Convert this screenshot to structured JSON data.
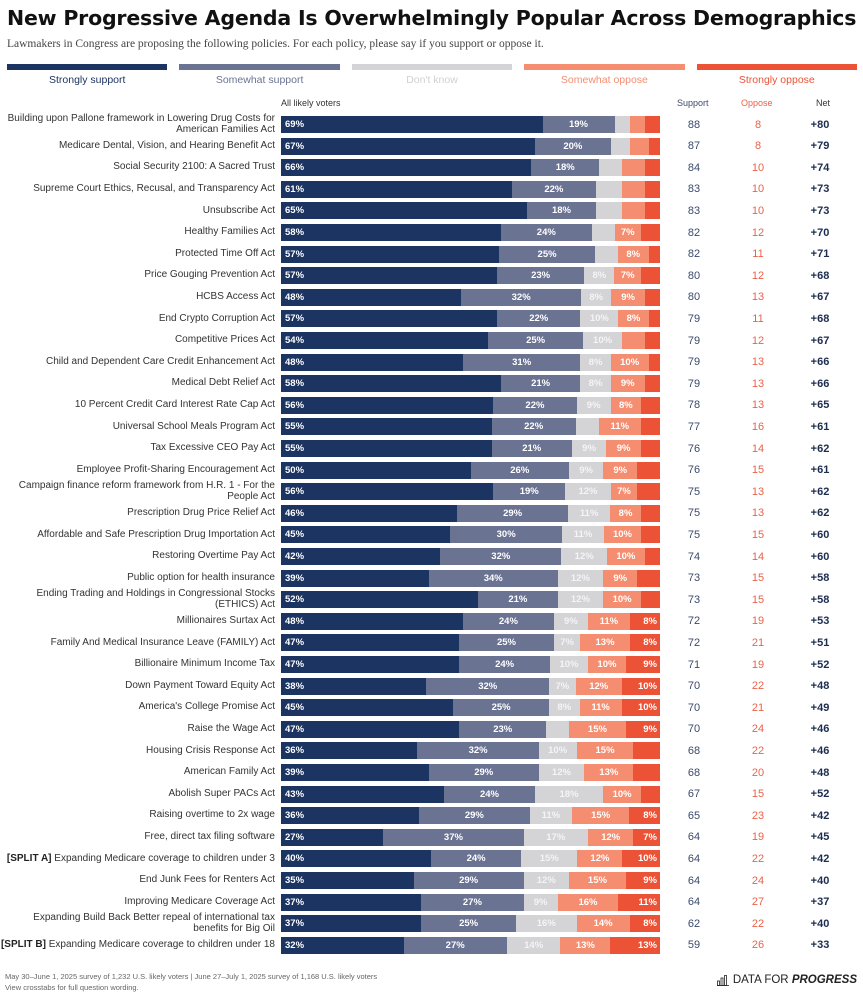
{
  "header": {
    "title": "New Progressive Agenda Is Overwhelmingly Popular Across Demographics",
    "subtitle": "Lawmakers in Congress are proposing the following policies. For each policy, please say if you support or oppose it."
  },
  "colors": {
    "strongly_support": "#1c3461",
    "somewhat_support": "#6b7393",
    "dont_know": "#d4d4d6",
    "somewhat_oppose": "#f58d70",
    "strongly_oppose": "#ec5236"
  },
  "legend": [
    {
      "label": "Strongly support",
      "color": "#1c3461",
      "text_color": "#1c3461"
    },
    {
      "label": "Somewhat support",
      "color": "#6b7393",
      "text_color": "#6b7393"
    },
    {
      "label": "Don't know",
      "color": "#d4d4d6",
      "text_color": "#d0d0d2"
    },
    {
      "label": "Somewhat oppose",
      "color": "#f58d70",
      "text_color": "#f58d70"
    },
    {
      "label": "Strongly oppose",
      "color": "#ec5236",
      "text_color": "#ec5236"
    }
  ],
  "columns": {
    "group": "All likely voters",
    "support": "Support",
    "oppose": "Oppose",
    "net": "Net"
  },
  "chart_data": {
    "type": "bar",
    "orientation": "horizontal-stacked-100",
    "title": "New Progressive Agenda Is Overwhelmingly Popular Across Demographics",
    "subtitle": "Lawmakers in Congress are proposing the following policies. For each policy, please say if you support or oppose it.",
    "group": "All likely voters",
    "series_names": [
      "Strongly support",
      "Somewhat support",
      "Don't know",
      "Somewhat oppose",
      "Strongly oppose"
    ],
    "legend_position": "top",
    "xlim": [
      0,
      100
    ],
    "rows": [
      {
        "label": "Building upon Pallone framework in Lowering Drug Costs for American Families Act",
        "values": [
          69,
          19,
          4,
          4,
          4
        ],
        "shown": [
          true,
          true,
          false,
          false,
          false
        ],
        "support": "88",
        "oppose": "8",
        "net": "+80"
      },
      {
        "label": "Medicare Dental, Vision, and Hearing Benefit Act",
        "values": [
          67,
          20,
          5,
          5,
          3
        ],
        "shown": [
          true,
          true,
          false,
          false,
          false
        ],
        "support": "87",
        "oppose": "8",
        "net": "+79"
      },
      {
        "label": "Social Security 2100: A Sacred Trust",
        "values": [
          66,
          18,
          6,
          6,
          4
        ],
        "shown": [
          true,
          true,
          false,
          false,
          false
        ],
        "support": "84",
        "oppose": "10",
        "net": "+74"
      },
      {
        "label": "Supreme Court Ethics, Recusal, and Transparency Act",
        "values": [
          61,
          22,
          7,
          6,
          4
        ],
        "shown": [
          true,
          true,
          false,
          false,
          false
        ],
        "support": "83",
        "oppose": "10",
        "net": "+73"
      },
      {
        "label": "Unsubscribe Act",
        "values": [
          65,
          18,
          7,
          6,
          4
        ],
        "shown": [
          true,
          true,
          false,
          false,
          false
        ],
        "support": "83",
        "oppose": "10",
        "net": "+73"
      },
      {
        "label": "Healthy Families Act",
        "values": [
          58,
          24,
          6,
          7,
          5
        ],
        "shown": [
          true,
          true,
          false,
          true,
          false
        ],
        "support": "82",
        "oppose": "12",
        "net": "+70"
      },
      {
        "label": "Protected Time Off Act",
        "values": [
          57,
          25,
          6,
          8,
          3
        ],
        "shown": [
          true,
          true,
          false,
          true,
          false
        ],
        "support": "82",
        "oppose": "11",
        "net": "+71"
      },
      {
        "label": "Price Gouging Prevention Act",
        "values": [
          57,
          23,
          8,
          7,
          5
        ],
        "shown": [
          true,
          true,
          true,
          true,
          false
        ],
        "support": "80",
        "oppose": "12",
        "net": "+68"
      },
      {
        "label": "HCBS Access Act",
        "values": [
          48,
          32,
          8,
          9,
          4
        ],
        "shown": [
          true,
          true,
          true,
          true,
          false
        ],
        "support": "80",
        "oppose": "13",
        "net": "+67"
      },
      {
        "label": "End Crypto Corruption Act",
        "values": [
          57,
          22,
          10,
          8,
          3
        ],
        "shown": [
          true,
          true,
          true,
          true,
          false
        ],
        "support": "79",
        "oppose": "11",
        "net": "+68"
      },
      {
        "label": "Competitive Prices Act",
        "values": [
          54,
          25,
          10,
          6,
          4
        ],
        "shown": [
          true,
          true,
          true,
          false,
          false
        ],
        "support": "79",
        "oppose": "12",
        "net": "+67"
      },
      {
        "label": "Child and Dependent Care Credit Enhancement Act",
        "values": [
          48,
          31,
          8,
          10,
          3
        ],
        "shown": [
          true,
          true,
          true,
          true,
          false
        ],
        "support": "79",
        "oppose": "13",
        "net": "+66"
      },
      {
        "label": "Medical Debt Relief Act",
        "values": [
          58,
          21,
          8,
          9,
          4
        ],
        "shown": [
          true,
          true,
          true,
          true,
          false
        ],
        "support": "79",
        "oppose": "13",
        "net": "+66"
      },
      {
        "label": "10 Percent Credit Card Interest Rate Cap Act",
        "values": [
          56,
          22,
          9,
          8,
          5
        ],
        "shown": [
          true,
          true,
          true,
          true,
          false
        ],
        "support": "78",
        "oppose": "13",
        "net": "+65"
      },
      {
        "label": "Universal School Meals Program Act",
        "values": [
          55,
          22,
          6,
          11,
          5
        ],
        "shown": [
          true,
          true,
          false,
          true,
          false
        ],
        "support": "77",
        "oppose": "16",
        "net": "+61"
      },
      {
        "label": "Tax Excessive CEO Pay Act",
        "values": [
          55,
          21,
          9,
          9,
          5
        ],
        "shown": [
          true,
          true,
          true,
          true,
          false
        ],
        "support": "76",
        "oppose": "14",
        "net": "+62"
      },
      {
        "label": "Employee Profit-Sharing Encouragement Act",
        "values": [
          50,
          26,
          9,
          9,
          6
        ],
        "shown": [
          true,
          true,
          true,
          true,
          false
        ],
        "support": "76",
        "oppose": "15",
        "net": "+61"
      },
      {
        "label": "Campaign finance reform framework from H.R. 1 - For the People Act",
        "values": [
          56,
          19,
          12,
          7,
          6
        ],
        "shown": [
          true,
          true,
          true,
          true,
          false
        ],
        "support": "75",
        "oppose": "13",
        "net": "+62"
      },
      {
        "label": "Prescription Drug Price Relief Act",
        "values": [
          46,
          29,
          11,
          8,
          5
        ],
        "shown": [
          true,
          true,
          true,
          true,
          false
        ],
        "support": "75",
        "oppose": "13",
        "net": "+62"
      },
      {
        "label": "Affordable and Safe Prescription Drug Importation Act",
        "values": [
          45,
          30,
          11,
          10,
          5
        ],
        "shown": [
          true,
          true,
          true,
          true,
          false
        ],
        "support": "75",
        "oppose": "15",
        "net": "+60"
      },
      {
        "label": "Restoring Overtime Pay Act",
        "values": [
          42,
          32,
          12,
          10,
          4
        ],
        "shown": [
          true,
          true,
          true,
          true,
          false
        ],
        "support": "74",
        "oppose": "14",
        "net": "+60"
      },
      {
        "label": "Public option for health insurance",
        "values": [
          39,
          34,
          12,
          9,
          6
        ],
        "shown": [
          true,
          true,
          true,
          true,
          false
        ],
        "support": "73",
        "oppose": "15",
        "net": "+58"
      },
      {
        "label": "Ending Trading and Holdings in Congressional Stocks (ETHICS) Act",
        "values": [
          52,
          21,
          12,
          10,
          5
        ],
        "shown": [
          true,
          true,
          true,
          true,
          false
        ],
        "support": "73",
        "oppose": "15",
        "net": "+58"
      },
      {
        "label": "Millionaires Surtax Act",
        "values": [
          48,
          24,
          9,
          11,
          8
        ],
        "shown": [
          true,
          true,
          true,
          true,
          true
        ],
        "support": "72",
        "oppose": "19",
        "net": "+53"
      },
      {
        "label": "Family And Medical Insurance Leave (FAMILY) Act",
        "values": [
          47,
          25,
          7,
          13,
          8
        ],
        "shown": [
          true,
          true,
          true,
          true,
          true
        ],
        "support": "72",
        "oppose": "21",
        "net": "+51"
      },
      {
        "label": "Billionaire Minimum Income Tax",
        "values": [
          47,
          24,
          10,
          10,
          9
        ],
        "shown": [
          true,
          true,
          true,
          true,
          true
        ],
        "support": "71",
        "oppose": "19",
        "net": "+52"
      },
      {
        "label": "Down Payment Toward Equity Act",
        "values": [
          38,
          32,
          7,
          12,
          10
        ],
        "shown": [
          true,
          true,
          true,
          true,
          true
        ],
        "support": "70",
        "oppose": "22",
        "net": "+48"
      },
      {
        "label": "America's College Promise Act",
        "values": [
          45,
          25,
          8,
          11,
          10
        ],
        "shown": [
          true,
          true,
          true,
          true,
          true
        ],
        "support": "70",
        "oppose": "21",
        "net": "+49"
      },
      {
        "label": "Raise the Wage Act",
        "values": [
          47,
          23,
          6,
          15,
          9
        ],
        "shown": [
          true,
          true,
          false,
          true,
          true
        ],
        "support": "70",
        "oppose": "24",
        "net": "+46"
      },
      {
        "label": "Housing Crisis Response Act",
        "values": [
          36,
          32,
          10,
          15,
          7
        ],
        "shown": [
          true,
          true,
          true,
          true,
          false
        ],
        "support": "68",
        "oppose": "22",
        "net": "+46"
      },
      {
        "label": "American Family Act",
        "values": [
          39,
          29,
          12,
          13,
          7
        ],
        "shown": [
          true,
          true,
          true,
          true,
          false
        ],
        "support": "68",
        "oppose": "20",
        "net": "+48"
      },
      {
        "label": "Abolish Super PACs Act",
        "values": [
          43,
          24,
          18,
          10,
          5
        ],
        "shown": [
          true,
          true,
          true,
          true,
          false
        ],
        "support": "67",
        "oppose": "15",
        "net": "+52"
      },
      {
        "label": "Raising overtime to 2x wage",
        "values": [
          36,
          29,
          11,
          15,
          8
        ],
        "shown": [
          true,
          true,
          true,
          true,
          true
        ],
        "support": "65",
        "oppose": "23",
        "net": "+42"
      },
      {
        "label": "Free, direct tax filing software",
        "values": [
          27,
          37,
          17,
          12,
          7
        ],
        "shown": [
          true,
          true,
          true,
          true,
          true
        ],
        "support": "64",
        "oppose": "19",
        "net": "+45"
      },
      {
        "label_bold": "[SPLIT A]",
        "label": " Expanding Medicare coverage to children under 3",
        "values": [
          40,
          24,
          15,
          12,
          10
        ],
        "shown": [
          true,
          true,
          true,
          true,
          true
        ],
        "support": "64",
        "oppose": "22",
        "net": "+42"
      },
      {
        "label": "End Junk Fees for Renters Act",
        "values": [
          35,
          29,
          12,
          15,
          9
        ],
        "shown": [
          true,
          true,
          true,
          true,
          true
        ],
        "support": "64",
        "oppose": "24",
        "net": "+40"
      },
      {
        "label": "Improving Medicare Coverage Act",
        "values": [
          37,
          27,
          9,
          16,
          11
        ],
        "shown": [
          true,
          true,
          true,
          true,
          true
        ],
        "support": "64",
        "oppose": "27",
        "net": "+37"
      },
      {
        "label": "Expanding Build Back Better repeal of international tax benefits for Big Oil",
        "values": [
          37,
          25,
          16,
          14,
          8
        ],
        "shown": [
          true,
          true,
          true,
          true,
          true
        ],
        "support": "62",
        "oppose": "22",
        "net": "+40"
      },
      {
        "label_bold": "[SPLIT B]",
        "label": " Expanding Medicare coverage to children under 18",
        "values": [
          32,
          27,
          14,
          13,
          13
        ],
        "shown": [
          true,
          true,
          true,
          true,
          true
        ],
        "support": "59",
        "oppose": "26",
        "net": "+33"
      }
    ]
  },
  "footer": {
    "source_line": "May 30–June 1, 2025 survey of 1,232 U.S. likely voters | June 27–July 1, 2025 survey of 1,168 U.S. likely voters",
    "note_line": "View crosstabs for full question wording.",
    "logo_light": "DATA FOR ",
    "logo_bold": "PROGRESS",
    "logo_icon": "bar-chart-icon"
  }
}
